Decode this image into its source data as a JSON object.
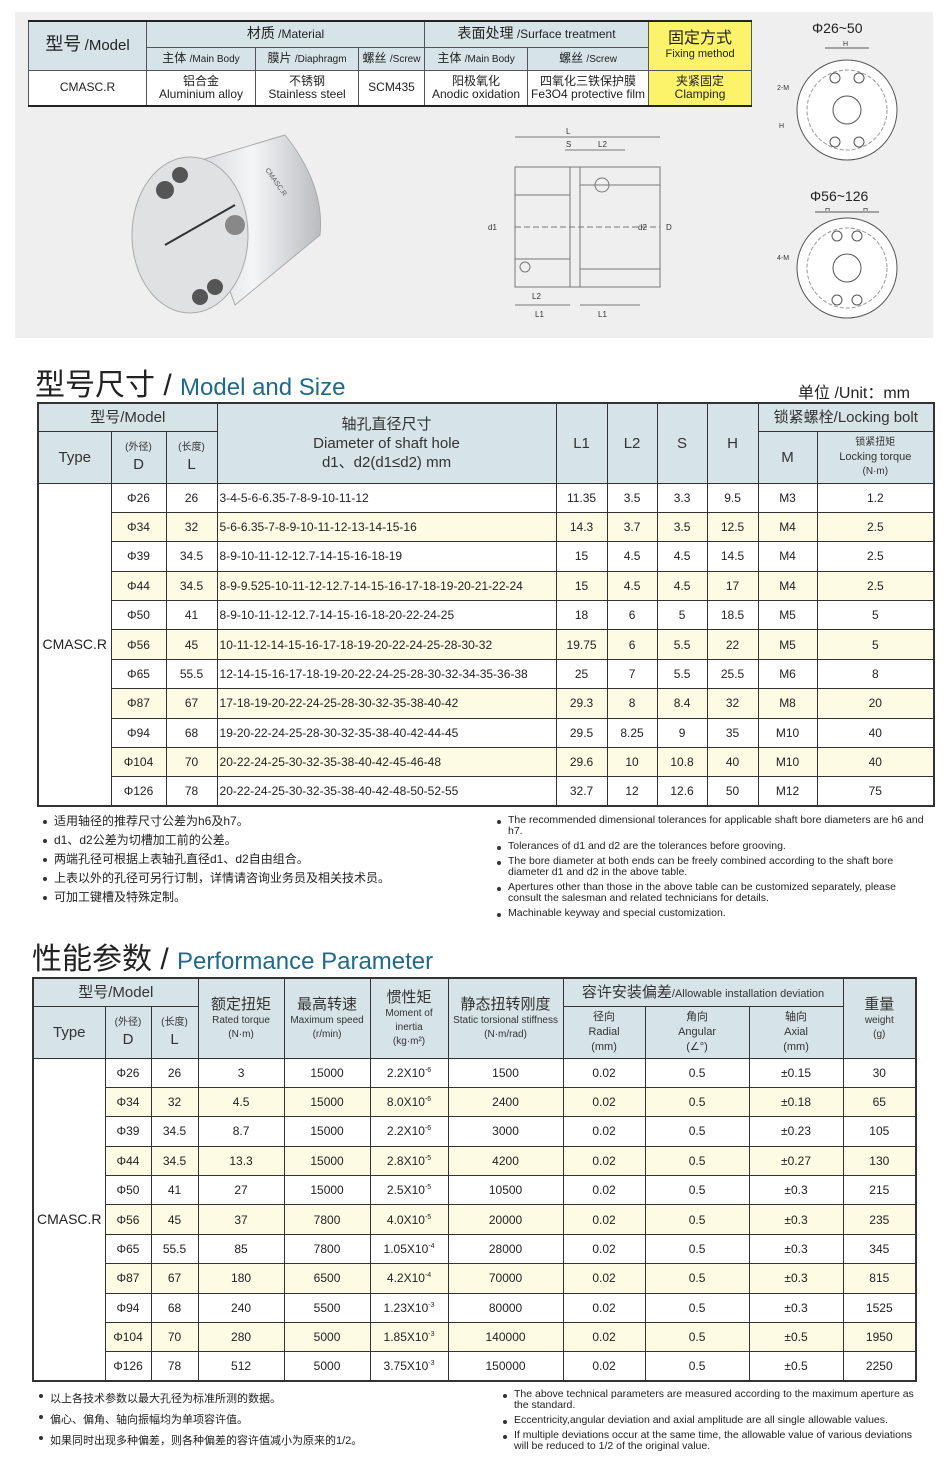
{
  "spec_table": {
    "model": "型号",
    "model_en": "/Model",
    "material": "材质",
    "material_en": "/Material",
    "surface": "表面处理",
    "surface_en": "/Surface treatment",
    "fixing": "固定方式",
    "fixing_en": "Fixing method",
    "main_body": "主体",
    "main_body_en": "/Main Body",
    "diaphragm": "膜片",
    "diaphragm_en": "/Diaphragm",
    "screw": "螺丝",
    "screw_en": "/Screw",
    "sub_main_body": "主体",
    "sub_main_body_en": "/Main Body",
    "sub_screw": "螺丝",
    "sub_screw_en": "/Screw",
    "row": {
      "model": "CMASC.R",
      "body_cn": "铝合金",
      "body_en": "Aluminium alloy",
      "diaphragm_cn": "不锈钢",
      "diaphragm_en": "Stainless steel",
      "screw": "SCM435",
      "surface_body_cn": "阳极氧化",
      "surface_body_en": "Anodic oxidation",
      "surface_screw_cn": "四氧化三铁保护膜",
      "surface_screw_en": "Fe3O4 protective film",
      "fixing_cn": "夹紧固定",
      "fixing_en": "Clamping"
    }
  },
  "drawings": {
    "small_range": "Φ26~50",
    "large_range": "Φ56~126",
    "label_H": "H",
    "label_2M": "2-M",
    "label_4M": "4-M",
    "label_L": "L",
    "label_S": "S",
    "label_L2": "L2",
    "label_d1": "d1",
    "label_d2": "d2",
    "label_D": "D",
    "label_L1": "L1",
    "product_text": "CMASC.R"
  },
  "size_section": {
    "title_cn": "型号尺寸",
    "slash": "/",
    "title_en": "Model and Size",
    "unit": "单位 /Unit：mm",
    "headers": {
      "model": "型号/Model",
      "shaft_cn": "轴孔直径尺寸",
      "shaft_en": "Diameter of shaft hole",
      "shaft_unit": "d1、d2(d1≤d2) mm",
      "L1": "L1",
      "L2": "L2",
      "S": "S",
      "H": "H",
      "bolt": "锁紧螺栓/Locking bolt",
      "type": "Type",
      "D_cn": "(外径)",
      "D": "D",
      "L_cn": "(长度)",
      "L": "L",
      "M": "M",
      "torque_cn": "锁紧扭矩",
      "torque_en": "Locking torque",
      "torque_unit": "(N·m)"
    },
    "type": "CMASC.R",
    "rows": [
      [
        "Φ26",
        "26",
        "3-4-5-6-6.35-7-8-9-10-11-12",
        "11.35",
        "3.5",
        "3.3",
        "9.5",
        "M3",
        "1.2"
      ],
      [
        "Φ34",
        "32",
        "5-6-6.35-7-8-9-10-11-12-13-14-15-16",
        "14.3",
        "3.7",
        "3.5",
        "12.5",
        "M4",
        "2.5"
      ],
      [
        "Φ39",
        "34.5",
        "8-9-10-11-12-12.7-14-15-16-18-19",
        "15",
        "4.5",
        "4.5",
        "14.5",
        "M4",
        "2.5"
      ],
      [
        "Φ44",
        "34.5",
        "8-9-9.525-10-11-12-12.7-14-15-16-17-18-19-20-21-22-24",
        "15",
        "4.5",
        "4.5",
        "17",
        "M4",
        "2.5"
      ],
      [
        "Φ50",
        "41",
        "8-9-10-11-12-12.7-14-15-16-18-20-22-24-25",
        "18",
        "6",
        "5",
        "18.5",
        "M5",
        "5"
      ],
      [
        "Φ56",
        "45",
        "10-11-12-14-15-16-17-18-19-20-22-24-25-28-30-32",
        "19.75",
        "6",
        "5.5",
        "22",
        "M5",
        "5"
      ],
      [
        "Φ65",
        "55.5",
        "12-14-15-16-17-18-19-20-22-24-25-28-30-32-34-35-36-38",
        "25",
        "7",
        "5.5",
        "25.5",
        "M6",
        "8"
      ],
      [
        "Φ87",
        "67",
        "17-18-19-20-22-24-25-28-30-32-35-38-40-42",
        "29.3",
        "8",
        "8.4",
        "32",
        "M8",
        "20"
      ],
      [
        "Φ94",
        "68",
        "19-20-22-24-25-28-30-32-35-38-40-42-44-45",
        "29.5",
        "8.25",
        "9",
        "35",
        "M10",
        "40"
      ],
      [
        "Φ104",
        "70",
        "20-22-24-25-30-32-35-38-40-42-45-46-48",
        "29.6",
        "10",
        "10.8",
        "40",
        "M10",
        "40"
      ],
      [
        "Φ126",
        "78",
        "20-22-24-25-30-32-35-38-40-42-48-50-52-55",
        "32.7",
        "12",
        "12.6",
        "50",
        "M12",
        "75"
      ]
    ],
    "notes_cn": [
      "适用轴径的推荐尺寸公差为h6及h7。",
      "d1、d2公差为切槽加工前的公差。",
      "两端孔径可根据上表轴孔直径d1、d2自由组合。",
      "上表以外的孔径可另行订制，详情请咨询业务员及相关技术员。",
      "可加工键槽及特殊定制。"
    ],
    "notes_en": [
      "The recommended dimensional tolerances for applicable shaft bore diameters are h6 and h7.",
      "Tolerances of d1 and d2 are the tolerances before grooving.",
      "The bore diameter at both ends can be freely combined according to the shaft bore diameter d1 and d2 in the above table.",
      "Apertures other than those in the above table can be customized separately, please consult the salesman and related technicians for details.",
      "Machinable keyway and special customization."
    ]
  },
  "perf_section": {
    "title_cn": "性能参数",
    "slash": "/",
    "title_en": "Performance Parameter",
    "headers": {
      "model": "型号/Model",
      "type": "Type",
      "D_cn": "(外径)",
      "D": "D",
      "L_cn": "(长度)",
      "L": "L",
      "rated_cn": "额定扭矩",
      "rated_en": "Rated torque",
      "rated_unit": "(N·m)",
      "speed_cn": "最高转速",
      "speed_en": "Maximum speed",
      "speed_unit": "(r/min)",
      "inertia_cn": "惯性矩",
      "inertia_en": "Moment of inertia",
      "inertia_unit": "(kg·m²)",
      "stiff_cn": "静态扭转刚度",
      "stiff_en": "Static torsional stiffness",
      "stiff_unit": "(N·m/rad)",
      "dev_cn": "容许安装偏差",
      "dev_en": "/Allowable installation deviation",
      "radial_cn": "径向",
      "radial_en": "Radial",
      "radial_unit": "(mm)",
      "angular_cn": "角向",
      "angular_en": "Angular",
      "angular_unit": "(∠°)",
      "axial_cn": "轴向",
      "axial_en": "Axial",
      "axial_unit": "(mm)",
      "weight_cn": "重量",
      "weight_en": "weight",
      "weight_unit": "(g)"
    },
    "type": "CMASC.R",
    "rows": [
      [
        "Φ26",
        "26",
        "3",
        "15000",
        "2.2X10",
        "-6",
        "1500",
        "0.02",
        "0.5",
        "±0.15",
        "30"
      ],
      [
        "Φ34",
        "32",
        "4.5",
        "15000",
        "8.0X10",
        "-6",
        "2400",
        "0.02",
        "0.5",
        "±0.18",
        "65"
      ],
      [
        "Φ39",
        "34.5",
        "8.7",
        "15000",
        "2.2X10",
        "-6",
        "3000",
        "0.02",
        "0.5",
        "±0.23",
        "105"
      ],
      [
        "Φ44",
        "34.5",
        "13.3",
        "15000",
        "2.8X10",
        "-5",
        "4200",
        "0.02",
        "0.5",
        "±0.27",
        "130"
      ],
      [
        "Φ50",
        "41",
        "27",
        "15000",
        "2.5X10",
        "-5",
        "10500",
        "0.02",
        "0.5",
        "±0.3",
        "215"
      ],
      [
        "Φ56",
        "45",
        "37",
        "7800",
        "4.0X10",
        "-5",
        "20000",
        "0.02",
        "0.5",
        "±0.3",
        "235"
      ],
      [
        "Φ65",
        "55.5",
        "85",
        "7800",
        "1.05X10",
        "-4",
        "28000",
        "0.02",
        "0.5",
        "±0.3",
        "345"
      ],
      [
        "Φ87",
        "67",
        "180",
        "6500",
        "4.2X10",
        "-4",
        "70000",
        "0.02",
        "0.5",
        "±0.3",
        "815"
      ],
      [
        "Φ94",
        "68",
        "240",
        "5500",
        "1.23X10",
        "-3",
        "80000",
        "0.02",
        "0.5",
        "±0.3",
        "1525"
      ],
      [
        "Φ104",
        "70",
        "280",
        "5000",
        "1.85X10",
        "-3",
        "140000",
        "0.02",
        "0.5",
        "±0.5",
        "1950"
      ],
      [
        "Φ126",
        "78",
        "512",
        "5000",
        "3.75X10",
        "-3",
        "150000",
        "0.02",
        "0.5",
        "±0.5",
        "2250"
      ]
    ],
    "notes_cn": [
      "以上各技术参数以最大孔径为标准所测的数据。",
      "偏心、偏角、轴向振幅均为单项容许值。",
      "如果同时出现多种偏差，则各种偏差的容许值减小为原来的1/2。"
    ],
    "notes_en": [
      "The above technical parameters are measured according to the maximum aperture as the standard.",
      "Eccentricity,angular deviation and axial amplitude are all single allowable values.",
      "If multiple deviations occur at the same time, the allowable value of various deviations will be reduced to 1/2 of the original value."
    ]
  },
  "colors": {
    "header_bg": "#d6e4e8",
    "alt_row": "#fdfbe4",
    "fixing_bg": "#fcf36a",
    "title_en": "#1e6a8c"
  }
}
